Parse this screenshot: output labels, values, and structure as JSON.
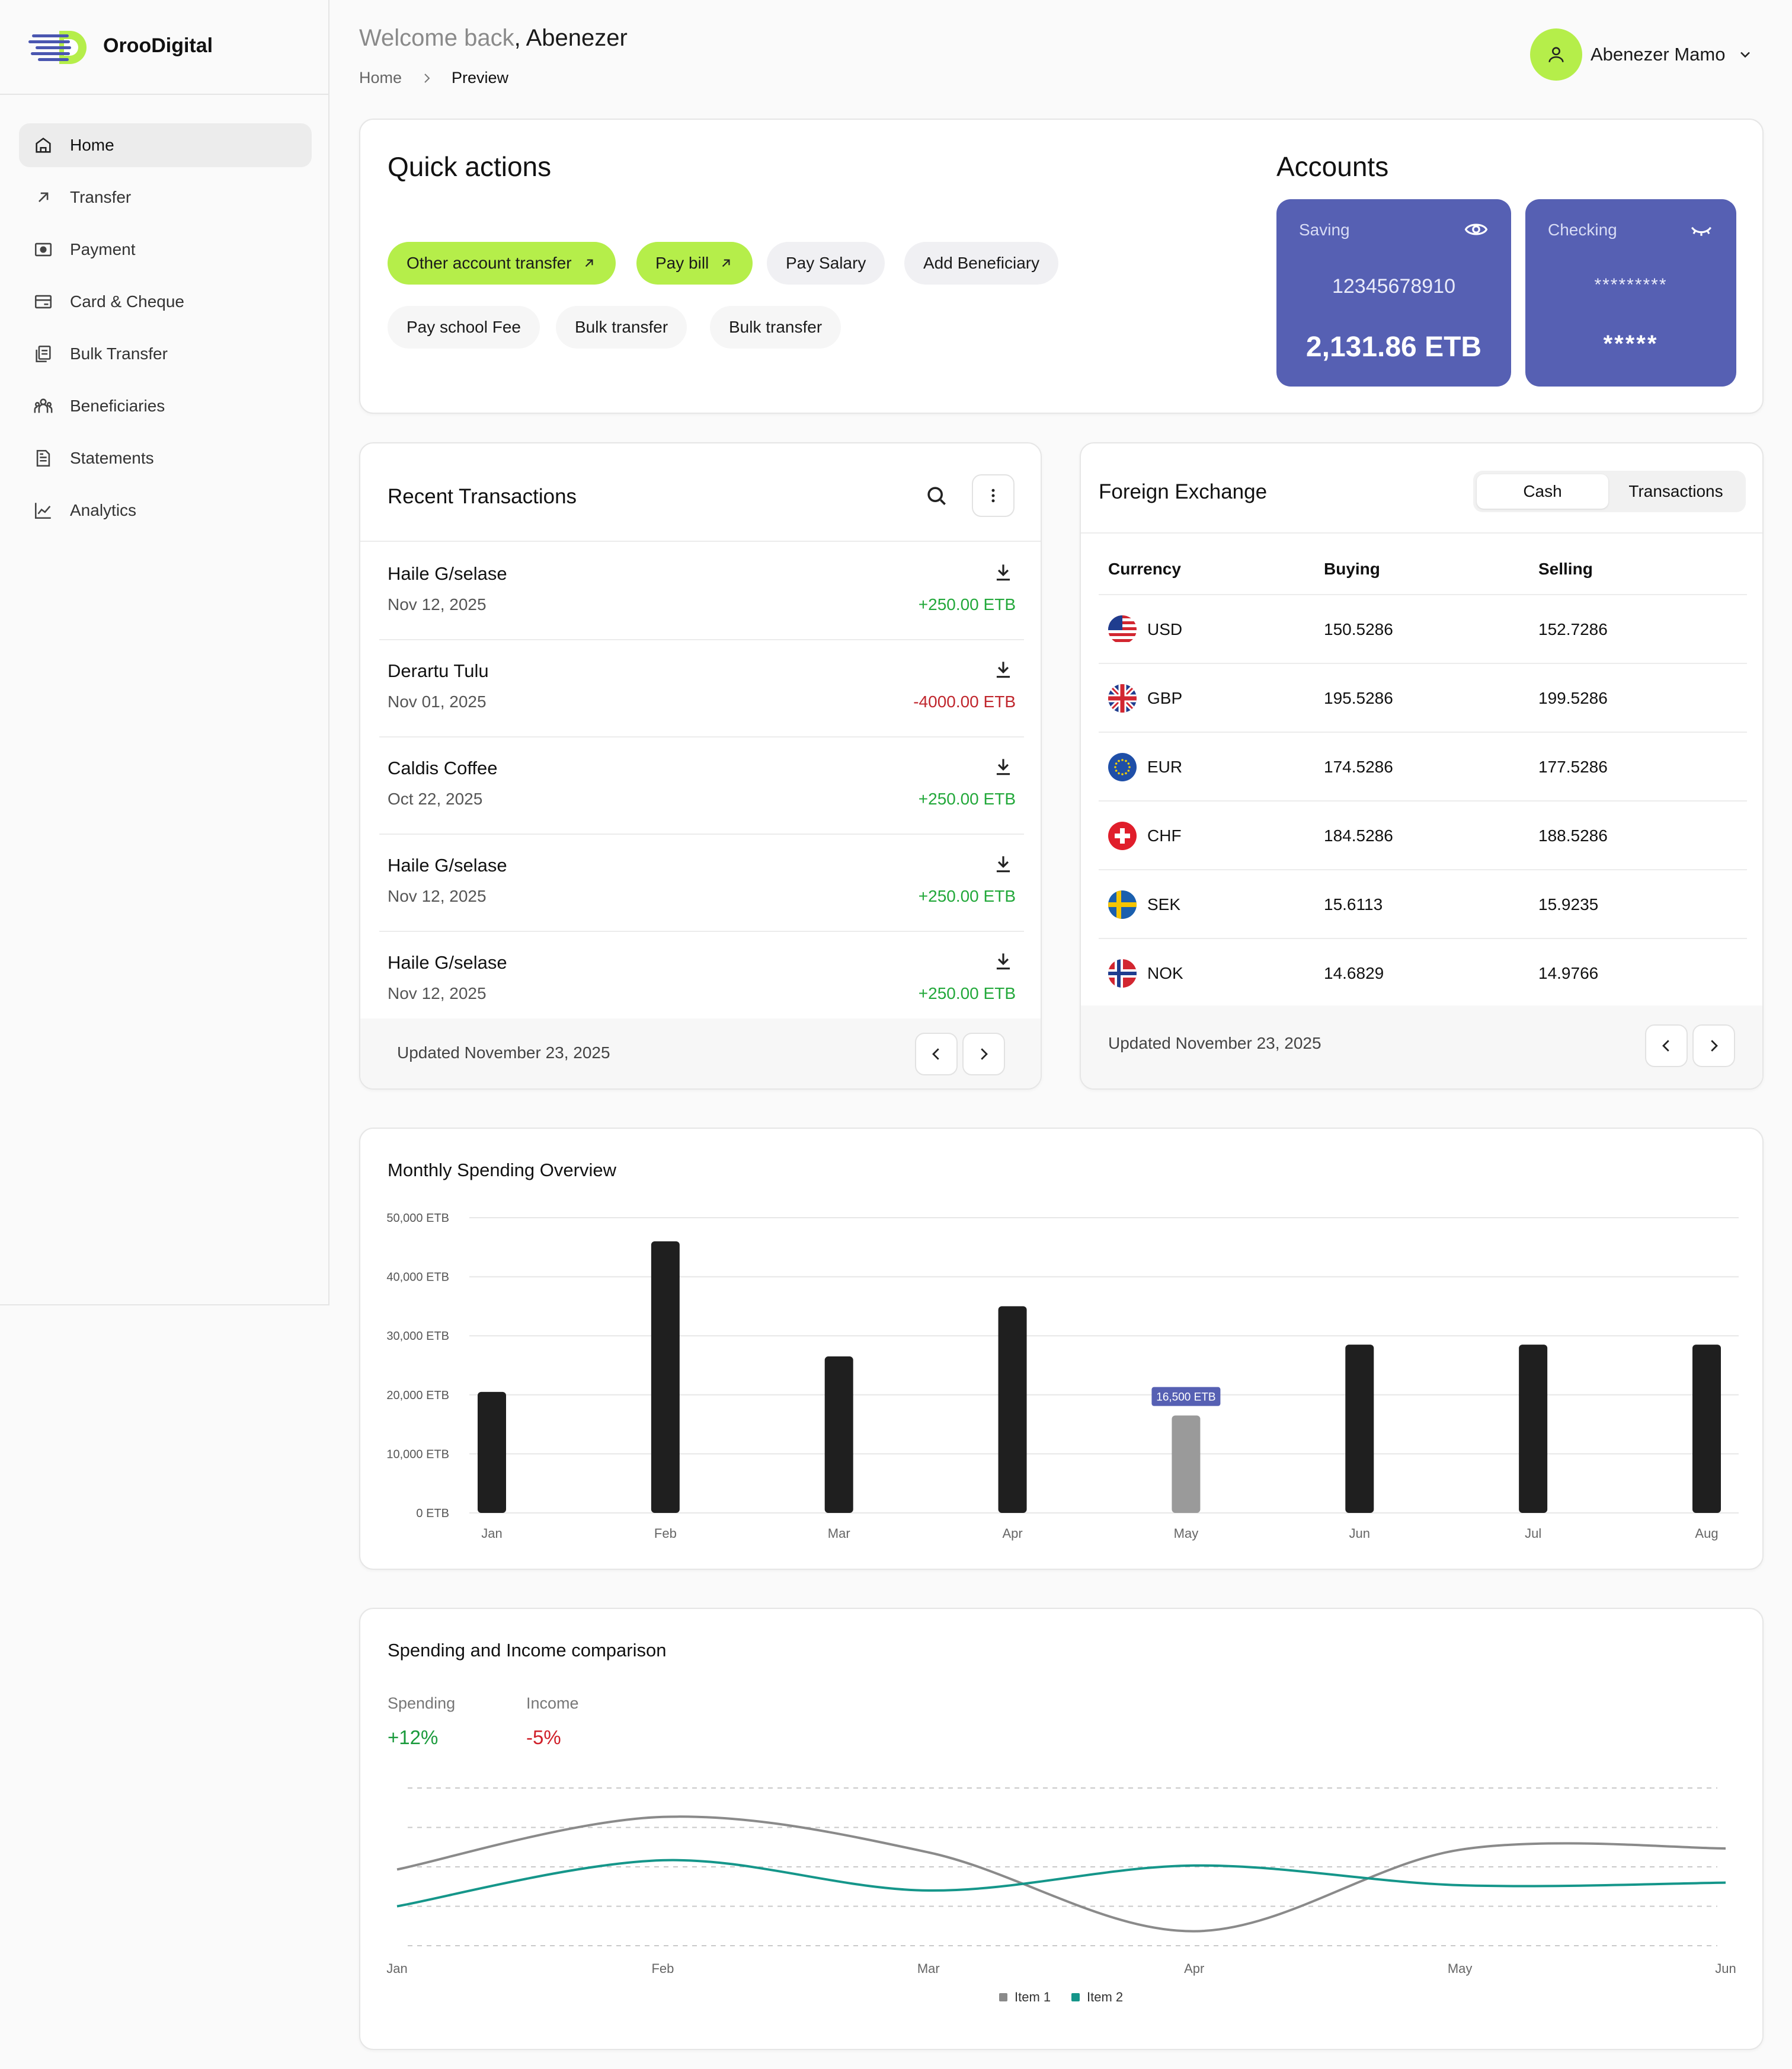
{
  "brand": {
    "name": "OrooDigital"
  },
  "sidebar": {
    "items": [
      {
        "label": "Home",
        "icon": "home-icon",
        "active": true
      },
      {
        "label": "Transfer",
        "icon": "arrow-up-right-icon"
      },
      {
        "label": "Payment",
        "icon": "payment-icon"
      },
      {
        "label": "Card & Cheque",
        "icon": "card-icon"
      },
      {
        "label": "Bulk Transfer",
        "icon": "bulk-transfer-icon"
      },
      {
        "label": "Beneficiaries",
        "icon": "users-icon"
      },
      {
        "label": "Statements",
        "icon": "document-icon"
      },
      {
        "label": "Analytics",
        "icon": "chart-line-icon"
      }
    ]
  },
  "header": {
    "welcome_prefix": "Welcome back",
    "welcome_name": ", Abenezer",
    "breadcrumb": {
      "home": "Home",
      "current": "Preview"
    },
    "user_name": "Abenezer Mamo"
  },
  "quick_actions": {
    "title": "Quick actions",
    "buttons": [
      {
        "label": "Other account transfer",
        "style": "green"
      },
      {
        "label": "Pay bill",
        "style": "green"
      },
      {
        "label": "Pay Salary",
        "style": "gray"
      },
      {
        "label": "Add Beneficiary",
        "style": "gray"
      },
      {
        "label": "Pay school Fee",
        "style": "plain"
      },
      {
        "label": "Bulk transfer",
        "style": "plain"
      },
      {
        "label": "Bulk transfer",
        "style": "plain"
      }
    ]
  },
  "accounts": {
    "title": "Accounts",
    "saving": {
      "label": "Saving",
      "number": "12345678910",
      "balance": "2,131.86 ETB"
    },
    "checking": {
      "label": "Checking",
      "number": "*********",
      "balance": "*****"
    },
    "card_color": "#5660b3"
  },
  "recent_transactions": {
    "title": "Recent Transactions",
    "items": [
      {
        "name": "Haile G/selase",
        "date": "Nov 12, 2025",
        "amount": "+250.00 ETB",
        "type": "credit"
      },
      {
        "name": "Derartu Tulu",
        "date": "Nov 01, 2025",
        "amount": "-4000.00 ETB",
        "type": "debit"
      },
      {
        "name": "Caldis Coffee",
        "date": "Oct 22, 2025",
        "amount": "+250.00 ETB",
        "type": "credit"
      },
      {
        "name": "Haile G/selase",
        "date": "Nov 12, 2025",
        "amount": "+250.00 ETB",
        "type": "credit"
      },
      {
        "name": "Haile G/selase",
        "date": "Nov 12, 2025",
        "amount": "+250.00 ETB",
        "type": "credit"
      }
    ],
    "updated": "Updated November 23, 2025"
  },
  "foreign_exchange": {
    "title": "Foreign Exchange",
    "tabs": [
      "Cash",
      "Transactions"
    ],
    "active_tab": "Cash",
    "headers": {
      "currency": "Currency",
      "buying": "Buying",
      "selling": "Selling"
    },
    "rows": [
      {
        "code": "USD",
        "buying": "150.5286",
        "selling": "152.7286"
      },
      {
        "code": "GBP",
        "buying": "195.5286",
        "selling": "199.5286"
      },
      {
        "code": "EUR",
        "buying": "174.5286",
        "selling": "177.5286"
      },
      {
        "code": "CHF",
        "buying": "184.5286",
        "selling": "188.5286"
      },
      {
        "code": "SEK",
        "buying": "15.6113",
        "selling": "15.9235"
      },
      {
        "code": "NOK",
        "buying": "14.6829",
        "selling": "14.9766"
      }
    ],
    "updated": "Updated November 23, 2025"
  },
  "monthly_spending": {
    "title": "Monthly Spending Overview",
    "chart_data": {
      "type": "bar",
      "categories": [
        "Jan",
        "Feb",
        "Mar",
        "Apr",
        "May",
        "Jun",
        "Jul",
        "Aug"
      ],
      "values": [
        20500,
        46000,
        26500,
        35000,
        16500,
        28500,
        28500,
        28500
      ],
      "highlight_index": 4,
      "highlight_label": "16,500 ETB",
      "yticks": [
        "0 ETB",
        "10,000 ETB",
        "20,000 ETB",
        "30,000 ETB",
        "40,000 ETB",
        "50,000 ETB"
      ],
      "ylim": [
        0,
        50000
      ],
      "bar_color": "#1f1f1f",
      "highlight_color": "#9a9a9a",
      "grid": true
    }
  },
  "comparison": {
    "title": "Spending and Income comparison",
    "stats": [
      {
        "label": "Spending",
        "value": "+12%",
        "color": "#1a9a3c"
      },
      {
        "label": "Income",
        "value": "-5%",
        "color": "#d0202a"
      }
    ],
    "chart_data": {
      "type": "line",
      "x": [
        "Jan",
        "Feb",
        "Mar",
        "Apr",
        "May",
        "Jun"
      ],
      "series": [
        {
          "name": "Item 1",
          "color": "#8a8a8a",
          "values": [
            0.58,
            0.98,
            0.71,
            0.11,
            0.73,
            0.74
          ]
        },
        {
          "name": "Item 2",
          "color": "#15968a",
          "values": [
            0.3,
            0.65,
            0.42,
            0.61,
            0.46,
            0.48
          ]
        }
      ],
      "ylim": [
        0,
        1.2
      ],
      "grid": "dashed",
      "legend": "bottom-center"
    }
  }
}
